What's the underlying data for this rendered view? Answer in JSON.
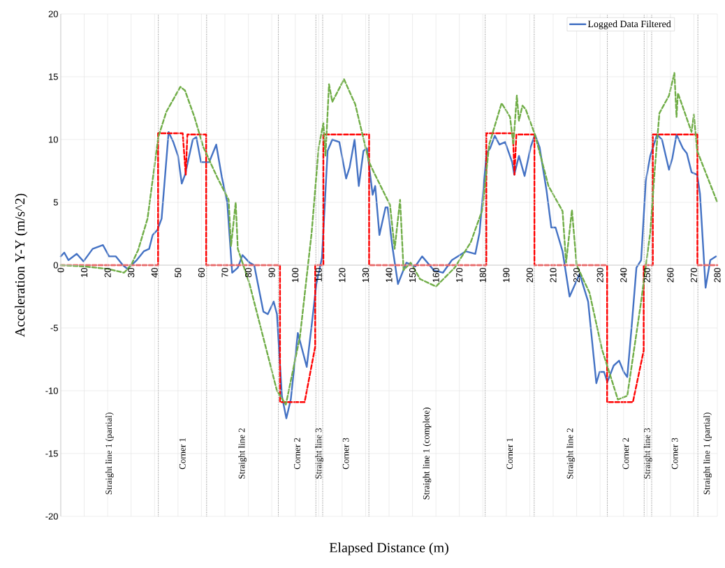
{
  "chart_data": {
    "type": "line",
    "xlabel": "Elapsed Distance (m)",
    "ylabel": "Acceleration Y-Y (m/s^2)",
    "xlim": [
      0,
      280
    ],
    "ylim": [
      -20,
      20
    ],
    "xticks": [
      0,
      10,
      20,
      30,
      40,
      50,
      60,
      70,
      80,
      90,
      100,
      110,
      120,
      130,
      140,
      150,
      160,
      170,
      180,
      190,
      200,
      210,
      220,
      230,
      240,
      250,
      260,
      270,
      280
    ],
    "yticks": [
      -20,
      -15,
      -10,
      -5,
      0,
      5,
      10,
      15,
      20
    ],
    "grid": true,
    "legend": "top right",
    "series": [
      {
        "name": "Logged Data Filtered",
        "color": "#4472c4",
        "line_style": "solid",
        "x": [
          0,
          1.5,
          3.3,
          6.8,
          9.7,
          13.6,
          18,
          20.6,
          23.5,
          26.5,
          28.4,
          32.4,
          35.4,
          37.7,
          39.2,
          41.2,
          43,
          46,
          48,
          50,
          51.6,
          53,
          56.3,
          57.8,
          59.8,
          63.3,
          66.3,
          68.7,
          71,
          73.1,
          75.5,
          77.5,
          80.5,
          82.5,
          86.4,
          88.3,
          90.8,
          92.2,
          94.3,
          96.2,
          98.1,
          101.1,
          104.9,
          107,
          109,
          111.4,
          113.8,
          115.8,
          118.8,
          121.7,
          123.2,
          125.3,
          127.1,
          129.1,
          130.6,
          133,
          134.1,
          135.9,
          138.5,
          139.4,
          141.4,
          143.8,
          147.4,
          151.2,
          154.1,
          159.1,
          163,
          166.8,
          172.7,
          176.8,
          178.6,
          181.6,
          183.1,
          185.1,
          187.1,
          189.5,
          192.5,
          193.4,
          195.4,
          197.8,
          200.4,
          202.2,
          204.2,
          207.2,
          209.2,
          211,
          214,
          217,
          221.3,
          224.9,
          228.4,
          229.8,
          231.7,
          233.1,
          235.8,
          238.1,
          240.1,
          241.6,
          243.5,
          245.5,
          247.5,
          249.5,
          251.4,
          254.3,
          256.4,
          259.4,
          260.8,
          262.6,
          265.3,
          267,
          269,
          271.4,
          272.6,
          275,
          277,
          279.4
        ],
        "values": [
          0.7,
          1,
          0.4,
          0.9,
          0.3,
          1.3,
          1.6,
          0.7,
          0.7,
          0,
          -0.3,
          0.4,
          1.1,
          1.3,
          2.4,
          2.8,
          3.7,
          10.6,
          9.8,
          8.7,
          6.5,
          7.2,
          10,
          10.2,
          8.2,
          8.2,
          9.6,
          7,
          5,
          -0.6,
          -0.2,
          0.8,
          0.2,
          0,
          -3.7,
          -3.9,
          -2.9,
          -3.9,
          -10.4,
          -12.2,
          -10.7,
          -5.4,
          -8.1,
          -4.8,
          -1.5,
          0.6,
          9.1,
          10,
          9.8,
          6.9,
          7.8,
          10,
          6.3,
          9.1,
          9.3,
          5.6,
          6.3,
          2.4,
          4.6,
          4.6,
          1.5,
          -1.5,
          0.2,
          -0.1,
          0.7,
          -0.4,
          -0.6,
          0.4,
          1.1,
          0.9,
          2.6,
          8.9,
          9.3,
          10.3,
          9.6,
          9.8,
          8.2,
          7.2,
          8.7,
          7.1,
          9.4,
          10.4,
          9.4,
          5.9,
          3,
          3,
          1.1,
          -2.5,
          -0.7,
          -2.9,
          -9.4,
          -8.5,
          -8.5,
          -9.3,
          -8,
          -7.6,
          -8.5,
          -8.9,
          -4.8,
          -0.2,
          0.4,
          6.7,
          8.7,
          10.4,
          10,
          7.6,
          8.5,
          10.4,
          9.3,
          8.9,
          7.4,
          7.2,
          5.7,
          -1.8,
          0.4,
          0.7
        ]
      },
      {
        "color": "#ff0000",
        "line_style": "dashed",
        "x": [
          0,
          41.5,
          41.5,
          52,
          53.3,
          54,
          62,
          62,
          93.5,
          93.5,
          104,
          108.5,
          108.5,
          112,
          112,
          131.5,
          131.5,
          181.5,
          181.5,
          192.8,
          193.5,
          194.3,
          202,
          202,
          233,
          233,
          244,
          248.6,
          248.6,
          252.5,
          252.5,
          271.5,
          271.5,
          280
        ],
        "values": [
          0,
          0,
          10.5,
          10.5,
          7.2,
          10.4,
          10.4,
          0,
          0,
          -10.9,
          -10.9,
          -6.5,
          0,
          0,
          10.4,
          10.4,
          0,
          0,
          10.5,
          10.5,
          7.2,
          10.4,
          10.4,
          0,
          0,
          -10.9,
          -10.9,
          -6.8,
          0,
          0,
          10.4,
          10.4,
          0,
          0
        ]
      },
      {
        "color": "#70ad47",
        "line_style": "dashed",
        "x": [
          0,
          10,
          20,
          27,
          30,
          33,
          37,
          41.6,
          45,
          51,
          53,
          57,
          60.8,
          66.7,
          71.6,
          72.6,
          74.6,
          75.5,
          76.6,
          80.5,
          92.2,
          96,
          102,
          107,
          110,
          112,
          112.9,
          114.4,
          115.8,
          120.8,
          125.6,
          131.5,
          133.5,
          140.4,
          142.4,
          144.7,
          146.2,
          149.2,
          153.2,
          160,
          168,
          174.8,
          179.8,
          182.7,
          188,
          191.6,
          193,
          194.5,
          195.4,
          196.9,
          198.3,
          202.2,
          208,
          214,
          215.5,
          218,
          220,
          225.5,
          230.8,
          237.6,
          241.6,
          247.5,
          251.4,
          253.4,
          255.3,
          259.4,
          261.7,
          262.6,
          263.2,
          269,
          270,
          271.4,
          280
        ],
        "values": [
          0,
          -0.1,
          -0.3,
          -0.6,
          0,
          1.2,
          3.7,
          10.2,
          12.2,
          14.2,
          13.9,
          11.8,
          9.4,
          7,
          5.2,
          1.5,
          5,
          1.3,
          0.7,
          -1.5,
          -10,
          -11.1,
          -5.7,
          2.6,
          9.4,
          11.3,
          8.7,
          14.4,
          13,
          14.8,
          12.8,
          8.2,
          7.4,
          4.8,
          1.3,
          5.2,
          -0.4,
          0.2,
          -1.1,
          -1.7,
          -0.2,
          1.8,
          4.4,
          9.6,
          12.9,
          11.8,
          9.6,
          13.5,
          11.5,
          12.7,
          12.4,
          10.4,
          6.3,
          4.3,
          0.2,
          4.4,
          0,
          -2.2,
          -6.7,
          -10.7,
          -10.4,
          -2.9,
          2.6,
          7.8,
          12.1,
          13.5,
          15.3,
          11.8,
          13.7,
          10.6,
          12,
          9.1,
          5
        ]
      }
    ],
    "ref_lines": [
      {
        "axis": "x",
        "value": 41.6,
        "color": "#808080",
        "line_style": "dotted"
      },
      {
        "axis": "x",
        "value": 62.2,
        "color": "#808080",
        "line_style": "dotted"
      },
      {
        "axis": "x",
        "value": 92.8,
        "color": "#808080",
        "line_style": "dotted"
      },
      {
        "axis": "x",
        "value": 108.8,
        "color": "#808080",
        "line_style": "dotted"
      },
      {
        "axis": "x",
        "value": 111.7,
        "color": "#808080",
        "line_style": "dotted"
      },
      {
        "axis": "x",
        "value": 131.4,
        "color": "#808080",
        "line_style": "dotted"
      },
      {
        "axis": "x",
        "value": 181,
        "color": "#808080",
        "line_style": "dotted"
      },
      {
        "axis": "x",
        "value": 201.9,
        "color": "#808080",
        "line_style": "dotted"
      },
      {
        "axis": "x",
        "value": 233.1,
        "color": "#808080",
        "line_style": "dotted"
      },
      {
        "axis": "x",
        "value": 248.8,
        "color": "#808080",
        "line_style": "dotted"
      },
      {
        "axis": "x",
        "value": 252,
        "color": "#808080",
        "line_style": "dotted"
      },
      {
        "axis": "x",
        "value": 271.7,
        "color": "#808080",
        "line_style": "dotted"
      }
    ],
    "annotations": [
      "Straight line 1 (partial)",
      "Corner 1",
      "Straight line 2",
      "Corner 2",
      "Straight line 3",
      "Corner 3",
      "Straight line 1 (complete)",
      "Corner 1",
      "Straight line 2",
      "Corner 2",
      "Straight line 3",
      "Corner 3",
      "Straight line 1 (partial)"
    ]
  }
}
